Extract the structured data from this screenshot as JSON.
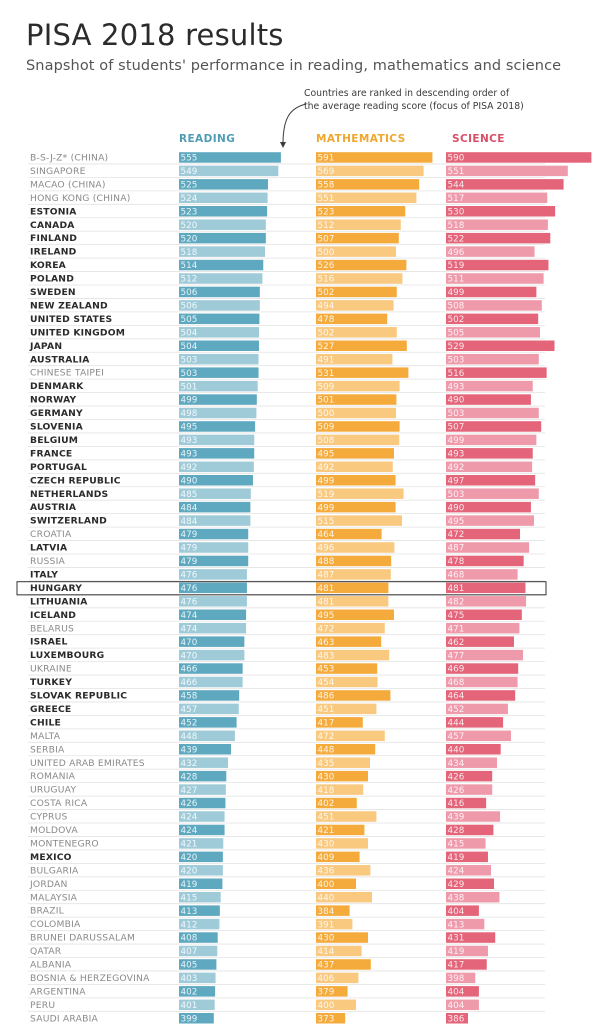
{
  "chart_data": {
    "type": "bar",
    "orientation": "horizontal",
    "title": "PISA 2018 results",
    "subtitle": "Snapshot of students' performance in reading, mathematics and science",
    "annotation": [
      "Countries are ranked in descending order of",
      "the average reading score (focus of PISA 2018)"
    ],
    "highlighted_category": "HUNGARY",
    "colors": {
      "reading": {
        "dark": "#5fa9c0",
        "light": "#9fcbd9",
        "header": "#4f9db5"
      },
      "mathematics": {
        "dark": "#f5ab3c",
        "light": "#f9c97f",
        "header": "#f0a72f"
      },
      "science": {
        "dark": "#e4647a",
        "light": "#ef9aab",
        "header": "#d94f68"
      },
      "oecd_label": "#2a2a2a",
      "non_oecd_label": "#8a8a8a",
      "highlight_box": "#333333",
      "row_rule": "#e3e3e3"
    },
    "series": [
      {
        "name": "READING",
        "key": "reading",
        "values": [
          555,
          549,
          525,
          524,
          523,
          520,
          520,
          518,
          514,
          512,
          506,
          506,
          505,
          504,
          504,
          503,
          503,
          501,
          499,
          498,
          495,
          493,
          493,
          492,
          490,
          485,
          484,
          484,
          479,
          479,
          479,
          476,
          476,
          476,
          474,
          474,
          470,
          470,
          466,
          466,
          458,
          457,
          452,
          448,
          439,
          432,
          428,
          427,
          426,
          424,
          424,
          421,
          420,
          420,
          419,
          415,
          413,
          412,
          408,
          407,
          405,
          403,
          402,
          401,
          399
        ]
      },
      {
        "name": "MATHEMATICS",
        "key": "mathematics",
        "values": [
          591,
          569,
          558,
          551,
          523,
          512,
          507,
          500,
          526,
          516,
          502,
          494,
          478,
          502,
          527,
          491,
          531,
          509,
          501,
          500,
          509,
          508,
          495,
          492,
          499,
          519,
          499,
          515,
          464,
          496,
          488,
          487,
          481,
          481,
          495,
          472,
          463,
          483,
          453,
          454,
          486,
          451,
          417,
          472,
          448,
          435,
          430,
          418,
          402,
          451,
          421,
          430,
          409,
          436,
          400,
          440,
          384,
          391,
          430,
          414,
          437,
          406,
          379,
          400,
          373
        ]
      },
      {
        "name": "SCIENCE",
        "key": "science",
        "values": [
          590,
          551,
          544,
          517,
          530,
          518,
          522,
          496,
          519,
          511,
          499,
          508,
          502,
          505,
          529,
          503,
          516,
          493,
          490,
          503,
          507,
          499,
          493,
          492,
          497,
          503,
          490,
          495,
          472,
          487,
          478,
          468,
          481,
          482,
          475,
          471,
          462,
          477,
          469,
          468,
          464,
          452,
          444,
          457,
          440,
          434,
          426,
          426,
          416,
          439,
          428,
          415,
          419,
          424,
          429,
          438,
          404,
          413,
          431,
          419,
          417,
          398,
          404,
          404,
          386
        ]
      }
    ],
    "categories": [
      "B-S-J-Z* (CHINA)",
      "SINGAPORE",
      "MACAO (CHINA)",
      "HONG KONG (CHINA)",
      "ESTONIA",
      "CANADA",
      "FINLAND",
      "IRELAND",
      "KOREA",
      "POLAND",
      "SWEDEN",
      "NEW ZEALAND",
      "UNITED STATES",
      "UNITED KINGDOM",
      "JAPAN",
      "AUSTRALIA",
      "CHINESE TAIPEI",
      "DENMARK",
      "NORWAY",
      "GERMANY",
      "SLOVENIA",
      "BELGIUM",
      "FRANCE",
      "PORTUGAL",
      "CZECH REPUBLIC",
      "NETHERLANDS",
      "AUSTRIA",
      "SWITZERLAND",
      "CROATIA",
      "LATVIA",
      "RUSSIA",
      "ITALY",
      "HUNGARY",
      "LITHUANIA",
      "ICELAND",
      "BELARUS",
      "ISRAEL",
      "LUXEMBOURG",
      "UKRAINE",
      "TURKEY",
      "SLOVAK REPUBLIC",
      "GREECE",
      "CHILE",
      "MALTA",
      "SERBIA",
      "UNITED ARAB EMIRATES",
      "ROMANIA",
      "URUGUAY",
      "COSTA RICA",
      "CYPRUS",
      "MOLDOVA",
      "MONTENEGRO",
      "MEXICO",
      "BULGARIA",
      "JORDAN",
      "MALAYSIA",
      "BRAZIL",
      "COLOMBIA",
      "BRUNEI DARUSSALAM",
      "QATAR",
      "ALBANIA",
      "BOSNIA & HERZEGOVINA",
      "ARGENTINA",
      "PERU",
      "SAUDI ARABIA"
    ],
    "oecd_member": [
      false,
      false,
      false,
      false,
      true,
      true,
      true,
      true,
      true,
      true,
      true,
      true,
      true,
      true,
      true,
      true,
      false,
      true,
      true,
      true,
      true,
      true,
      true,
      true,
      true,
      true,
      true,
      true,
      false,
      true,
      false,
      true,
      true,
      true,
      true,
      false,
      true,
      true,
      false,
      true,
      true,
      true,
      true,
      false,
      false,
      false,
      false,
      false,
      false,
      false,
      false,
      false,
      true,
      false,
      false,
      false,
      false,
      false,
      false,
      false,
      false,
      false,
      false,
      false,
      false
    ],
    "xlabel": "",
    "ylabel": "",
    "grid": false,
    "legend": "column-headers-top"
  }
}
